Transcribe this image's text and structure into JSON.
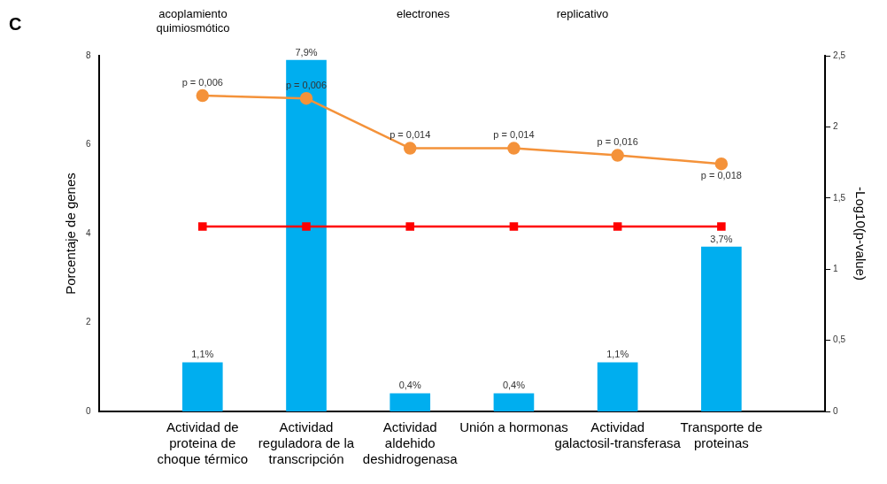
{
  "chart_data": {
    "type": "bar",
    "title": "C",
    "annotations": [
      "acoplamiento quimiosmótico",
      "electrones",
      "replicativo",
      "p = 0,006",
      "p = 0,006",
      "p = 0,014",
      "p = 0,014",
      "p = 0,016",
      "p = 0,018"
    ],
    "categories": [
      "Actividad de proteina de choque térmico",
      "Actividad reguladora de la transcripción",
      "Actividad aldehido deshidrogenasa",
      "Unión a hormonas",
      "Actividad galactosil-transferasa",
      "Transporte de proteinas"
    ],
    "ylabel": "Porcentaje de genes",
    "y2label": "-Log10(p-value)",
    "ylim": [
      0,
      8
    ],
    "yticks": [
      0,
      2,
      4,
      6,
      8
    ],
    "y2lim": [
      0,
      2.5
    ],
    "y2ticks": [
      0,
      {
        "value": 0.5,
        "label": "0,5"
      },
      1,
      {
        "value": 1.5,
        "label": "1,5"
      },
      2,
      {
        "value": 2.5,
        "label": "2,5"
      }
    ],
    "grid": false,
    "legend": false,
    "series": [
      {
        "color": "#00aeef",
        "values": [
          1.1,
          7.9,
          0.4,
          0.4,
          1.1,
          3.7
        ],
        "value_labels": [
          "1,1%",
          "7,9%",
          "0,4%",
          "0,4%",
          "1,1%",
          "3,7%"
        ]
      },
      {
        "type": "line",
        "axis": "y2",
        "color": "#f4923a",
        "marker": "circle",
        "values": [
          2.22,
          2.2,
          1.85,
          1.85,
          1.8,
          1.74
        ]
      },
      {
        "type": "line",
        "axis": "y2",
        "color": "#ff0000",
        "marker": "square",
        "values": [
          1.3,
          1.3,
          1.3,
          1.3,
          1.3,
          1.3
        ]
      }
    ]
  }
}
